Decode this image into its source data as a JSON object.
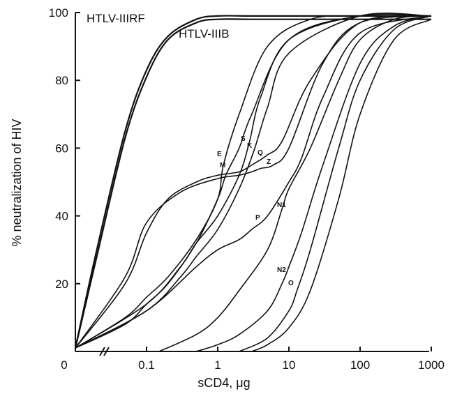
{
  "chart_data": {
    "type": "line",
    "title": "",
    "xlabel": "sCD4, μg",
    "ylabel": "% neutralization of HIV",
    "x_scale": "log",
    "x_break_label": "0",
    "x_ticks": [
      0.1,
      1,
      10,
      100,
      1000
    ],
    "x_tick_labels": [
      "0.1",
      "1",
      "10",
      "100",
      "1000"
    ],
    "y_ticks": [
      20,
      40,
      60,
      80,
      100
    ],
    "y_tick_labels": [
      "20",
      "40",
      "60",
      "80",
      "100"
    ],
    "ylim": [
      0,
      100
    ],
    "xlim": [
      0.01,
      1000
    ],
    "grid": false,
    "legend": "none",
    "series": [
      {
        "name": "HTLV-IIIRF",
        "label": "HTLV-IIIRF",
        "x": [
          0.01,
          0.02,
          0.05,
          0.1,
          0.2,
          0.5,
          1,
          3,
          10,
          100,
          1000
        ],
        "y": [
          1,
          30,
          65,
          83,
          93,
          98,
          99,
          99,
          99,
          99,
          99
        ]
      },
      {
        "name": "HTLV-IIIB",
        "label": "HTLV-IIIB",
        "x": [
          0.01,
          0.02,
          0.05,
          0.1,
          0.2,
          0.5,
          1,
          3,
          10,
          100,
          1000
        ],
        "y": [
          1,
          28,
          63,
          81,
          92,
          97,
          98,
          98,
          98,
          98,
          98
        ]
      },
      {
        "label": "E",
        "x": [
          0.01,
          0.05,
          0.1,
          0.2,
          0.5,
          1,
          1.2,
          2,
          5,
          20,
          100,
          1000
        ],
        "y": [
          1,
          10,
          16,
          22,
          33,
          45,
          55,
          70,
          90,
          98,
          99,
          99
        ]
      },
      {
        "label": "M",
        "x": [
          0.01,
          0.05,
          0.1,
          0.2,
          0.5,
          1,
          1.3,
          2,
          3,
          10,
          100,
          1000
        ],
        "y": [
          1,
          8,
          14,
          20,
          32,
          45,
          52,
          60,
          70,
          92,
          99,
          99
        ]
      },
      {
        "label": "S",
        "x": [
          0.01,
          0.1,
          0.3,
          0.5,
          1,
          2,
          2.8,
          4,
          10,
          100,
          1000
        ],
        "y": [
          1,
          14,
          25,
          32,
          40,
          52,
          62,
          75,
          92,
          99,
          99
        ]
      },
      {
        "label": "K",
        "x": [
          0.01,
          0.1,
          0.3,
          0.5,
          1,
          2,
          3.2,
          5,
          10,
          100,
          1000
        ],
        "y": [
          1,
          12,
          22,
          28,
          36,
          48,
          59,
          72,
          88,
          99,
          99
        ]
      },
      {
        "label": "Q",
        "x": [
          0.01,
          0.05,
          0.1,
          0.2,
          0.5,
          1,
          2,
          3,
          5,
          8,
          20,
          100,
          1000
        ],
        "y": [
          1,
          20,
          35,
          45,
          50,
          52,
          53,
          55,
          58,
          62,
          80,
          97,
          99
        ]
      },
      {
        "label": "Z",
        "x": [
          0.01,
          0.05,
          0.1,
          0.3,
          1,
          2,
          3,
          4,
          6,
          10,
          30,
          100,
          1000
        ],
        "y": [
          1,
          22,
          38,
          47,
          51,
          52,
          53,
          54,
          55,
          60,
          85,
          97,
          99
        ]
      },
      {
        "label": "P",
        "x": [
          0.01,
          0.1,
          0.5,
          1,
          2,
          3,
          5,
          10,
          15,
          30,
          100,
          1000
        ],
        "y": [
          1,
          12,
          25,
          30,
          33,
          36,
          40,
          50,
          57,
          75,
          94,
          99
        ]
      },
      {
        "label": "N1",
        "x": [
          0.15,
          0.5,
          1,
          2,
          5,
          8,
          10,
          20,
          50,
          100,
          300,
          1000
        ],
        "y": [
          0,
          5,
          10,
          18,
          30,
          42,
          48,
          60,
          80,
          92,
          98,
          99
        ]
      },
      {
        "label": "N2",
        "x": [
          0.5,
          1,
          2,
          5,
          8,
          10,
          15,
          30,
          100,
          300,
          1000
        ],
        "y": [
          0,
          2,
          5,
          12,
          20,
          25,
          35,
          55,
          85,
          96,
          99
        ]
      },
      {
        "label": "O",
        "x": [
          2,
          5,
          10,
          13,
          20,
          50,
          100,
          300,
          1000
        ],
        "y": [
          0,
          4,
          12,
          18,
          30,
          60,
          80,
          95,
          99
        ]
      },
      {
        "label": "",
        "x": [
          3,
          5,
          10,
          20,
          50,
          100,
          300,
          1000
        ],
        "y": [
          0,
          2,
          7,
          18,
          45,
          70,
          92,
          98
        ]
      }
    ]
  }
}
